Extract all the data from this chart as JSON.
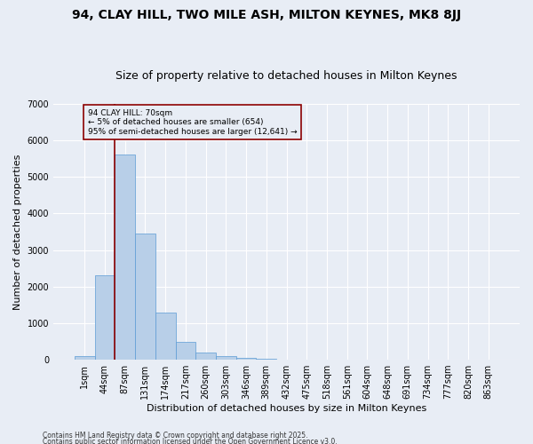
{
  "title1": "94, CLAY HILL, TWO MILE ASH, MILTON KEYNES, MK8 8JJ",
  "title2": "Size of property relative to detached houses in Milton Keynes",
  "xlabel": "Distribution of detached houses by size in Milton Keynes",
  "ylabel": "Number of detached properties",
  "categories": [
    "1sqm",
    "44sqm",
    "87sqm",
    "131sqm",
    "174sqm",
    "217sqm",
    "260sqm",
    "303sqm",
    "346sqm",
    "389sqm",
    "432sqm",
    "475sqm",
    "518sqm",
    "561sqm",
    "604sqm",
    "648sqm",
    "691sqm",
    "734sqm",
    "777sqm",
    "820sqm",
    "863sqm"
  ],
  "values": [
    100,
    2300,
    5600,
    3450,
    1300,
    480,
    200,
    100,
    50,
    25,
    0,
    0,
    0,
    0,
    0,
    0,
    0,
    0,
    0,
    0,
    0
  ],
  "bar_color": "#b8cfe8",
  "bar_edge_color": "#5b9bd5",
  "background_color": "#e8edf5",
  "grid_color": "#ffffff",
  "vline_x": 1.5,
  "vline_color": "#8b0000",
  "annotation_text": "94 CLAY HILL: 70sqm\n← 5% of detached houses are smaller (654)\n95% of semi-detached houses are larger (12,641) →",
  "annotation_box_color": "#8b0000",
  "ylim": [
    0,
    7000
  ],
  "yticks": [
    0,
    1000,
    2000,
    3000,
    4000,
    5000,
    6000,
    7000
  ],
  "footer1": "Contains HM Land Registry data © Crown copyright and database right 2025.",
  "footer2": "Contains public sector information licensed under the Open Government Licence v3.0.",
  "title1_fontsize": 10,
  "title2_fontsize": 9,
  "tick_fontsize": 7,
  "ylabel_fontsize": 8,
  "xlabel_fontsize": 8,
  "footer_fontsize": 5.5
}
